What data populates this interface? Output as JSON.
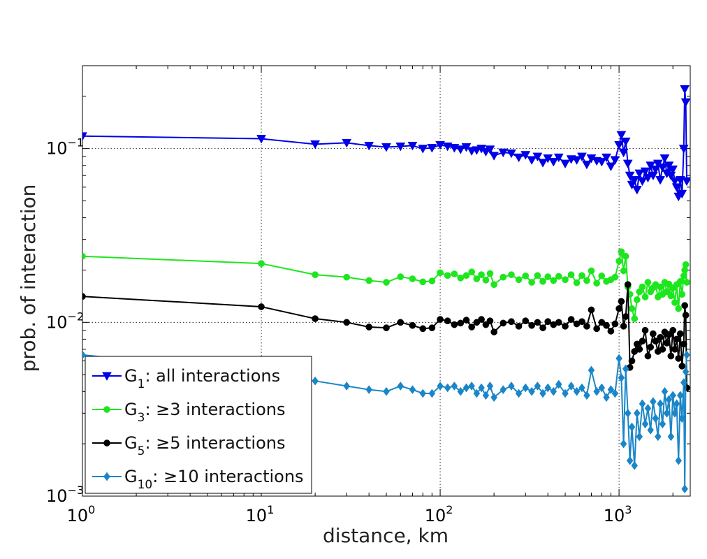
{
  "chart_data": {
    "type": "line",
    "x_scale": "log",
    "y_scale": "log",
    "xlim": [
      1,
      2500
    ],
    "ylim": [
      0.001,
      0.3
    ],
    "xlabel": "distance, km",
    "ylabel": "prob. of interaction",
    "grid": true,
    "legend_position": "bottom-left",
    "x_ticks": [
      {
        "base": "10",
        "exp": "0",
        "value": 1
      },
      {
        "base": "10",
        "exp": "1",
        "value": 10
      },
      {
        "base": "10",
        "exp": "2",
        "value": 100
      },
      {
        "base": "10",
        "exp": "3",
        "value": 1000
      }
    ],
    "y_ticks": [
      {
        "base": "10",
        "exp": "−3",
        "value": 0.001
      },
      {
        "base": "10",
        "exp": "−2",
        "value": 0.01
      },
      {
        "base": "10",
        "exp": "−1",
        "value": 0.1
      }
    ],
    "series": [
      {
        "name_main": "G",
        "name_sub": "1",
        "name_rest": ": all interactions",
        "color": "#0000e6",
        "marker": "triangle-down",
        "x": [
          1,
          10,
          20,
          30,
          40,
          50,
          60,
          70,
          80,
          90,
          100,
          110,
          120,
          130,
          140,
          150,
          160,
          170,
          180,
          190,
          200,
          225,
          250,
          275,
          300,
          325,
          350,
          375,
          400,
          430,
          460,
          500,
          540,
          580,
          620,
          660,
          700,
          750,
          800,
          850,
          900,
          950,
          1000,
          1030,
          1060,
          1090,
          1120,
          1150,
          1180,
          1220,
          1260,
          1300,
          1350,
          1400,
          1450,
          1500,
          1550,
          1600,
          1650,
          1700,
          1750,
          1800,
          1850,
          1900,
          1950,
          2000,
          2050,
          2100,
          2150,
          2200,
          2250,
          2300,
          2330,
          2360,
          2390
        ],
        "y": [
          0.118,
          0.114,
          0.106,
          0.108,
          0.104,
          0.102,
          0.103,
          0.104,
          0.1,
          0.101,
          0.105,
          0.103,
          0.101,
          0.099,
          0.102,
          0.097,
          0.098,
          0.1,
          0.096,
          0.099,
          0.091,
          0.095,
          0.094,
          0.089,
          0.092,
          0.086,
          0.09,
          0.083,
          0.088,
          0.084,
          0.089,
          0.082,
          0.087,
          0.086,
          0.09,
          0.081,
          0.088,
          0.085,
          0.084,
          0.089,
          0.079,
          0.086,
          0.105,
          0.12,
          0.095,
          0.11,
          0.082,
          0.07,
          0.062,
          0.066,
          0.058,
          0.072,
          0.065,
          0.074,
          0.068,
          0.08,
          0.07,
          0.076,
          0.082,
          0.066,
          0.078,
          0.088,
          0.072,
          0.08,
          0.07,
          0.076,
          0.065,
          0.06,
          0.053,
          0.066,
          0.055,
          0.1,
          0.22,
          0.185,
          0.065
        ]
      },
      {
        "name_main": "G",
        "name_sub": "3",
        "name_rest": ": ≥3 interactions",
        "color": "#1ee61e",
        "marker": "circle",
        "x": [
          1,
          10,
          20,
          30,
          40,
          50,
          60,
          70,
          80,
          90,
          100,
          110,
          120,
          130,
          140,
          150,
          160,
          170,
          180,
          190,
          200,
          225,
          250,
          275,
          300,
          325,
          350,
          375,
          400,
          430,
          460,
          500,
          540,
          580,
          620,
          660,
          700,
          750,
          800,
          850,
          900,
          950,
          1000,
          1030,
          1060,
          1090,
          1120,
          1150,
          1180,
          1220,
          1260,
          1300,
          1350,
          1400,
          1450,
          1500,
          1550,
          1600,
          1650,
          1700,
          1750,
          1800,
          1850,
          1900,
          1950,
          2000,
          2050,
          2100,
          2150,
          2200,
          2250,
          2300,
          2330,
          2360,
          2390
        ],
        "y": [
          0.024,
          0.0218,
          0.0188,
          0.0182,
          0.0174,
          0.017,
          0.0183,
          0.0178,
          0.0171,
          0.0173,
          0.0193,
          0.0186,
          0.019,
          0.018,
          0.0186,
          0.0195,
          0.0178,
          0.0188,
          0.0175,
          0.0191,
          0.0165,
          0.0182,
          0.0188,
          0.0176,
          0.0185,
          0.017,
          0.0186,
          0.0172,
          0.0183,
          0.0174,
          0.0184,
          0.0176,
          0.0188,
          0.0169,
          0.0186,
          0.0174,
          0.0198,
          0.0168,
          0.0185,
          0.0172,
          0.0176,
          0.0182,
          0.0225,
          0.0255,
          0.0198,
          0.024,
          0.016,
          0.0145,
          0.012,
          0.0105,
          0.0135,
          0.015,
          0.016,
          0.014,
          0.017,
          0.015,
          0.0158,
          0.0165,
          0.014,
          0.016,
          0.0145,
          0.017,
          0.015,
          0.0166,
          0.0142,
          0.0158,
          0.013,
          0.0165,
          0.012,
          0.0172,
          0.0145,
          0.0185,
          0.02,
          0.0215,
          0.017
        ]
      },
      {
        "name_main": "G",
        "name_sub": "5",
        "name_rest": ": ≥5 interactions",
        "color": "#000000",
        "marker": "circle",
        "x": [
          1,
          10,
          20,
          30,
          40,
          50,
          60,
          70,
          80,
          90,
          100,
          110,
          120,
          130,
          140,
          150,
          160,
          170,
          180,
          190,
          200,
          225,
          250,
          275,
          300,
          325,
          350,
          375,
          400,
          430,
          460,
          500,
          540,
          580,
          620,
          660,
          700,
          750,
          800,
          850,
          900,
          950,
          1000,
          1030,
          1060,
          1090,
          1120,
          1150,
          1180,
          1220,
          1260,
          1300,
          1350,
          1400,
          1450,
          1500,
          1550,
          1600,
          1650,
          1700,
          1750,
          1800,
          1850,
          1900,
          1950,
          2000,
          2050,
          2100,
          2150,
          2200,
          2250,
          2300,
          2330,
          2360,
          2390
        ],
        "y": [
          0.0141,
          0.0123,
          0.0105,
          0.01,
          0.0094,
          0.0093,
          0.01,
          0.0096,
          0.0092,
          0.0093,
          0.0104,
          0.0102,
          0.0097,
          0.0099,
          0.0103,
          0.0094,
          0.01,
          0.0104,
          0.0097,
          0.0102,
          0.0088,
          0.0099,
          0.0101,
          0.0095,
          0.0102,
          0.0096,
          0.01,
          0.0093,
          0.0101,
          0.0097,
          0.01,
          0.0095,
          0.0104,
          0.0098,
          0.0101,
          0.0095,
          0.0118,
          0.0092,
          0.01,
          0.0096,
          0.0089,
          0.0098,
          0.012,
          0.0132,
          0.0095,
          0.0108,
          0.0165,
          0.0055,
          0.006,
          0.0068,
          0.0075,
          0.007,
          0.0078,
          0.009,
          0.0064,
          0.0072,
          0.0086,
          0.0078,
          0.0068,
          0.0082,
          0.007,
          0.0088,
          0.0076,
          0.0085,
          0.0064,
          0.009,
          0.007,
          0.008,
          0.0062,
          0.0086,
          0.0056,
          0.0075,
          0.0125,
          0.011,
          0.0042
        ]
      },
      {
        "name_main": "G",
        "name_sub": "10",
        "name_rest": ": ≥10 interactions",
        "color": "#1a86c8",
        "marker": "diamond",
        "x": [
          1,
          10,
          20,
          30,
          40,
          50,
          60,
          70,
          80,
          90,
          100,
          110,
          120,
          130,
          140,
          150,
          160,
          170,
          180,
          190,
          200,
          225,
          250,
          275,
          300,
          325,
          350,
          375,
          400,
          430,
          460,
          500,
          540,
          580,
          620,
          660,
          700,
          750,
          800,
          850,
          900,
          950,
          1000,
          1030,
          1060,
          1090,
          1120,
          1150,
          1180,
          1220,
          1260,
          1300,
          1350,
          1400,
          1450,
          1500,
          1550,
          1600,
          1650,
          1700,
          1750,
          1800,
          1850,
          1900,
          1950,
          2000,
          2050,
          2100,
          2150,
          2200,
          2250,
          2300,
          2330,
          2360,
          2390
        ],
        "y": [
          0.0065,
          0.0051,
          0.0046,
          0.0043,
          0.0041,
          0.004,
          0.0043,
          0.0041,
          0.0039,
          0.0039,
          0.0043,
          0.0042,
          0.0043,
          0.004,
          0.0042,
          0.0043,
          0.0039,
          0.0042,
          0.0038,
          0.0043,
          0.0037,
          0.0041,
          0.0043,
          0.0039,
          0.0042,
          0.004,
          0.0043,
          0.0039,
          0.0042,
          0.004,
          0.0044,
          0.0039,
          0.0043,
          0.004,
          0.0042,
          0.0038,
          0.0053,
          0.004,
          0.0042,
          0.0037,
          0.0041,
          0.0039,
          0.0062,
          0.0048,
          0.002,
          0.0054,
          0.003,
          0.0016,
          0.0025,
          0.0015,
          0.003,
          0.0022,
          0.0034,
          0.0026,
          0.0032,
          0.0024,
          0.0035,
          0.0028,
          0.0022,
          0.0034,
          0.0026,
          0.004,
          0.003,
          0.0036,
          0.0022,
          0.0038,
          0.003,
          0.0034,
          0.0016,
          0.0038,
          0.0028,
          0.0045,
          0.0011,
          0.0052,
          0.0065
        ]
      }
    ]
  }
}
